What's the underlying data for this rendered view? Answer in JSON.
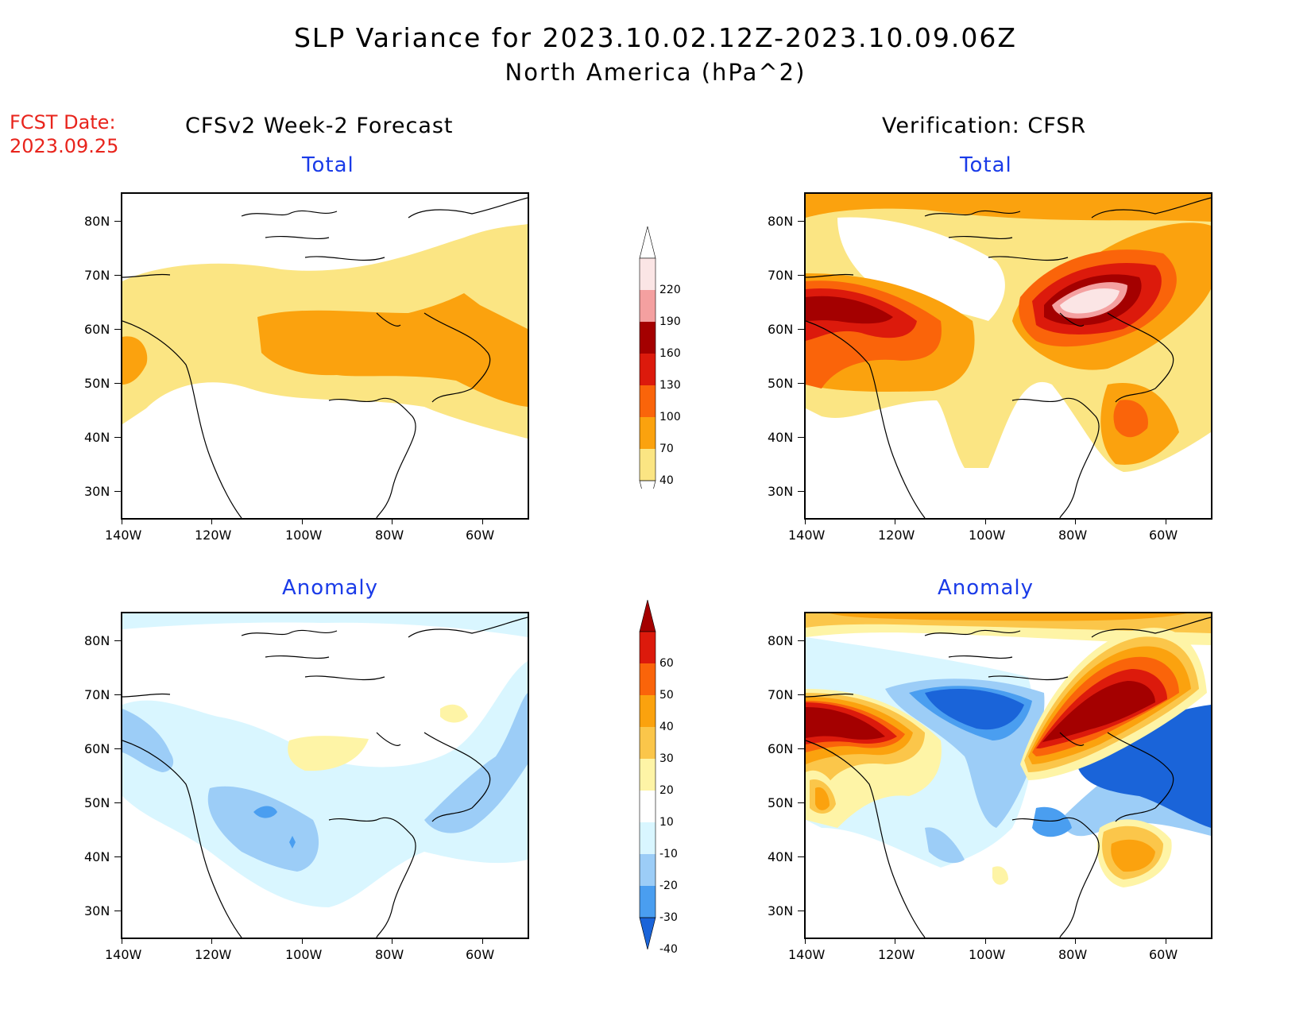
{
  "title": {
    "line1": "SLP Variance for 2023.10.02.12Z-2023.10.09.06Z",
    "line2": "North America (hPa^2)"
  },
  "fcst": {
    "label": "FCST Date:",
    "date": "2023.09.25"
  },
  "columns": {
    "left": "CFSv2 Week-2 Forecast",
    "right": "Verification: CFSR"
  },
  "rows": {
    "top": "Total",
    "bottom": "Anomaly"
  },
  "axes": {
    "lat_labels": [
      "80N",
      "70N",
      "60N",
      "50N",
      "40N",
      "30N"
    ],
    "lon_labels": [
      "140W",
      "120W",
      "100W",
      "80W",
      "60W"
    ]
  },
  "colorbars": {
    "total": {
      "levels": [
        "220",
        "190",
        "160",
        "130",
        "100",
        "70",
        "40"
      ],
      "colors": [
        "#fbe5e5",
        "#f4a0a0",
        "#a40000",
        "#dc1a0c",
        "#fa640a",
        "#fba20e",
        "#fbe583"
      ]
    },
    "anomaly": {
      "levels": [
        "60",
        "50",
        "40",
        "30",
        "20",
        "10",
        "-10",
        "-20",
        "-30",
        "-40"
      ],
      "colors": [
        "#a40000",
        "#dc1a0c",
        "#fa640a",
        "#fba20e",
        "#fbc64a",
        "#fef4a6",
        "#ffffff",
        "#d9f6ff",
        "#9ccdf7",
        "#4a9ef0",
        "#1a64d9"
      ]
    }
  },
  "map_data": [
    {
      "panel": "forecast-total",
      "palette": [
        "#fbe583",
        "#fba20e",
        "#fa640a"
      ]
    },
    {
      "panel": "verification-total",
      "palette": [
        "#fbe583",
        "#fba20e",
        "#fa640a",
        "#dc1a0c",
        "#a40000",
        "#f4a0a0",
        "#fbe5e5"
      ]
    },
    {
      "panel": "forecast-anomaly",
      "palette": [
        "#d9f6ff",
        "#9ccdf7",
        "#4a9ef0",
        "#fef4a6"
      ]
    },
    {
      "panel": "verification-anomaly",
      "palette": [
        "#a40000",
        "#dc1a0c",
        "#fa640a",
        "#fba20e",
        "#fbc64a",
        "#fef4a6",
        "#d9f6ff",
        "#9ccdf7",
        "#4a9ef0",
        "#1a64d9"
      ]
    }
  ]
}
